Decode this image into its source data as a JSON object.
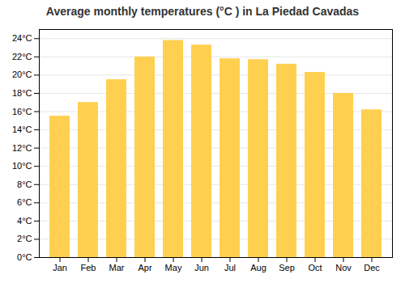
{
  "chart_data": {
    "type": "bar",
    "title": "Average monthly temperatures (°C ) in La Piedad Cavadas",
    "categories": [
      "Jan",
      "Feb",
      "Mar",
      "Apr",
      "May",
      "Jun",
      "Jul",
      "Aug",
      "Sep",
      "Oct",
      "Nov",
      "Dec"
    ],
    "values": [
      15.5,
      17.0,
      19.5,
      22.0,
      23.8,
      23.3,
      21.8,
      21.7,
      21.2,
      20.3,
      18.0,
      16.2
    ],
    "color": "#FFD050",
    "ylim": [
      0,
      25
    ],
    "yticks": [
      {
        "value": 0,
        "label": "0°C"
      },
      {
        "value": 2,
        "label": "2°C"
      },
      {
        "value": 4,
        "label": "4°C"
      },
      {
        "value": 6,
        "label": "6°C"
      },
      {
        "value": 8,
        "label": "8°C"
      },
      {
        "value": 10,
        "label": "10°C"
      },
      {
        "value": 12,
        "label": "12°C"
      },
      {
        "value": 14,
        "label": "14°C"
      },
      {
        "value": 16,
        "label": "16°C"
      },
      {
        "value": 18,
        "label": "18°C"
      },
      {
        "value": 20,
        "label": "20°C"
      },
      {
        "value": 22,
        "label": "22°C"
      },
      {
        "value": 24,
        "label": "24°C"
      }
    ],
    "grid": true
  }
}
